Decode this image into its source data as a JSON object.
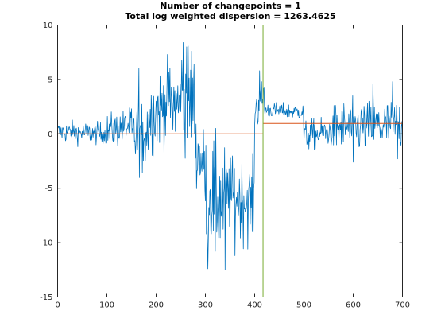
{
  "chart_data": {
    "type": "line",
    "title": [
      "Number of changepoints = 1",
      "Total log weighted dispersion = 1263.4625"
    ],
    "xlabel": "",
    "ylabel": "",
    "xlim": [
      0,
      700
    ],
    "ylim": [
      -15,
      10
    ],
    "xticks": [
      0,
      100,
      200,
      300,
      400,
      500,
      600,
      700
    ],
    "yticks": [
      -15,
      -10,
      -5,
      0,
      5,
      10
    ],
    "grid": false,
    "legend": "none",
    "signal": {
      "color": "#0072BD",
      "length": 700,
      "segments": [
        {
          "x0": 1,
          "x1": 100,
          "start": 0.2,
          "end": 0.0,
          "noise": 0.5
        },
        {
          "x0": 100,
          "x1": 150,
          "start": 0.2,
          "end": 0.8,
          "noise": 0.8
        },
        {
          "x0": 150,
          "x1": 185,
          "start": -0.5,
          "end": 0.5,
          "noise": 1.6
        },
        {
          "x0": 185,
          "x1": 225,
          "start": 1.5,
          "end": 3.0,
          "noise": 1.8
        },
        {
          "x0": 225,
          "x1": 250,
          "start": 2.8,
          "end": 2.5,
          "noise": 2.0
        },
        {
          "x0": 250,
          "x1": 280,
          "start": 3.5,
          "end": 2.5,
          "noise": 2.4
        },
        {
          "x0": 280,
          "x1": 300,
          "start": -1.5,
          "end": -3.0,
          "noise": 1.6
        },
        {
          "x0": 300,
          "x1": 340,
          "start": -5.0,
          "end": -6.5,
          "noise": 2.6
        },
        {
          "x0": 340,
          "x1": 400,
          "start": -5.5,
          "end": -6.5,
          "noise": 1.8
        },
        {
          "x0": 400,
          "x1": 420,
          "start": 2.0,
          "end": 3.5,
          "noise": 1.0
        },
        {
          "x0": 420,
          "x1": 500,
          "start": 2.2,
          "end": 2.0,
          "noise": 0.35
        },
        {
          "x0": 500,
          "x1": 560,
          "start": -0.2,
          "end": 0.2,
          "noise": 0.7
        },
        {
          "x0": 560,
          "x1": 700,
          "start": 0.5,
          "end": 0.8,
          "noise": 1.2
        }
      ],
      "spikes": [
        {
          "x": 165,
          "y": 6.0
        },
        {
          "x": 172,
          "y": -3.6
        },
        {
          "x": 255,
          "y": 8.4
        },
        {
          "x": 262,
          "y": 8.0
        },
        {
          "x": 272,
          "y": 7.6
        },
        {
          "x": 305,
          "y": -12.4
        },
        {
          "x": 320,
          "y": -10.8
        },
        {
          "x": 340,
          "y": -12.5
        },
        {
          "x": 360,
          "y": -11.2
        },
        {
          "x": 410,
          "y": 5.8
        },
        {
          "x": 640,
          "y": 4.6
        },
        {
          "x": 680,
          "y": 4.8
        },
        {
          "x": 600,
          "y": -2.6
        },
        {
          "x": 690,
          "y": -2.3
        }
      ]
    },
    "fitted_mean": {
      "color": "#D95319",
      "segments": [
        {
          "x0": 1,
          "x1": 417,
          "y": 0.0
        },
        {
          "x0": 417,
          "x1": 700,
          "y": 0.95
        }
      ]
    },
    "changepoints": {
      "color": "#77AC30",
      "x": [
        417
      ]
    }
  }
}
